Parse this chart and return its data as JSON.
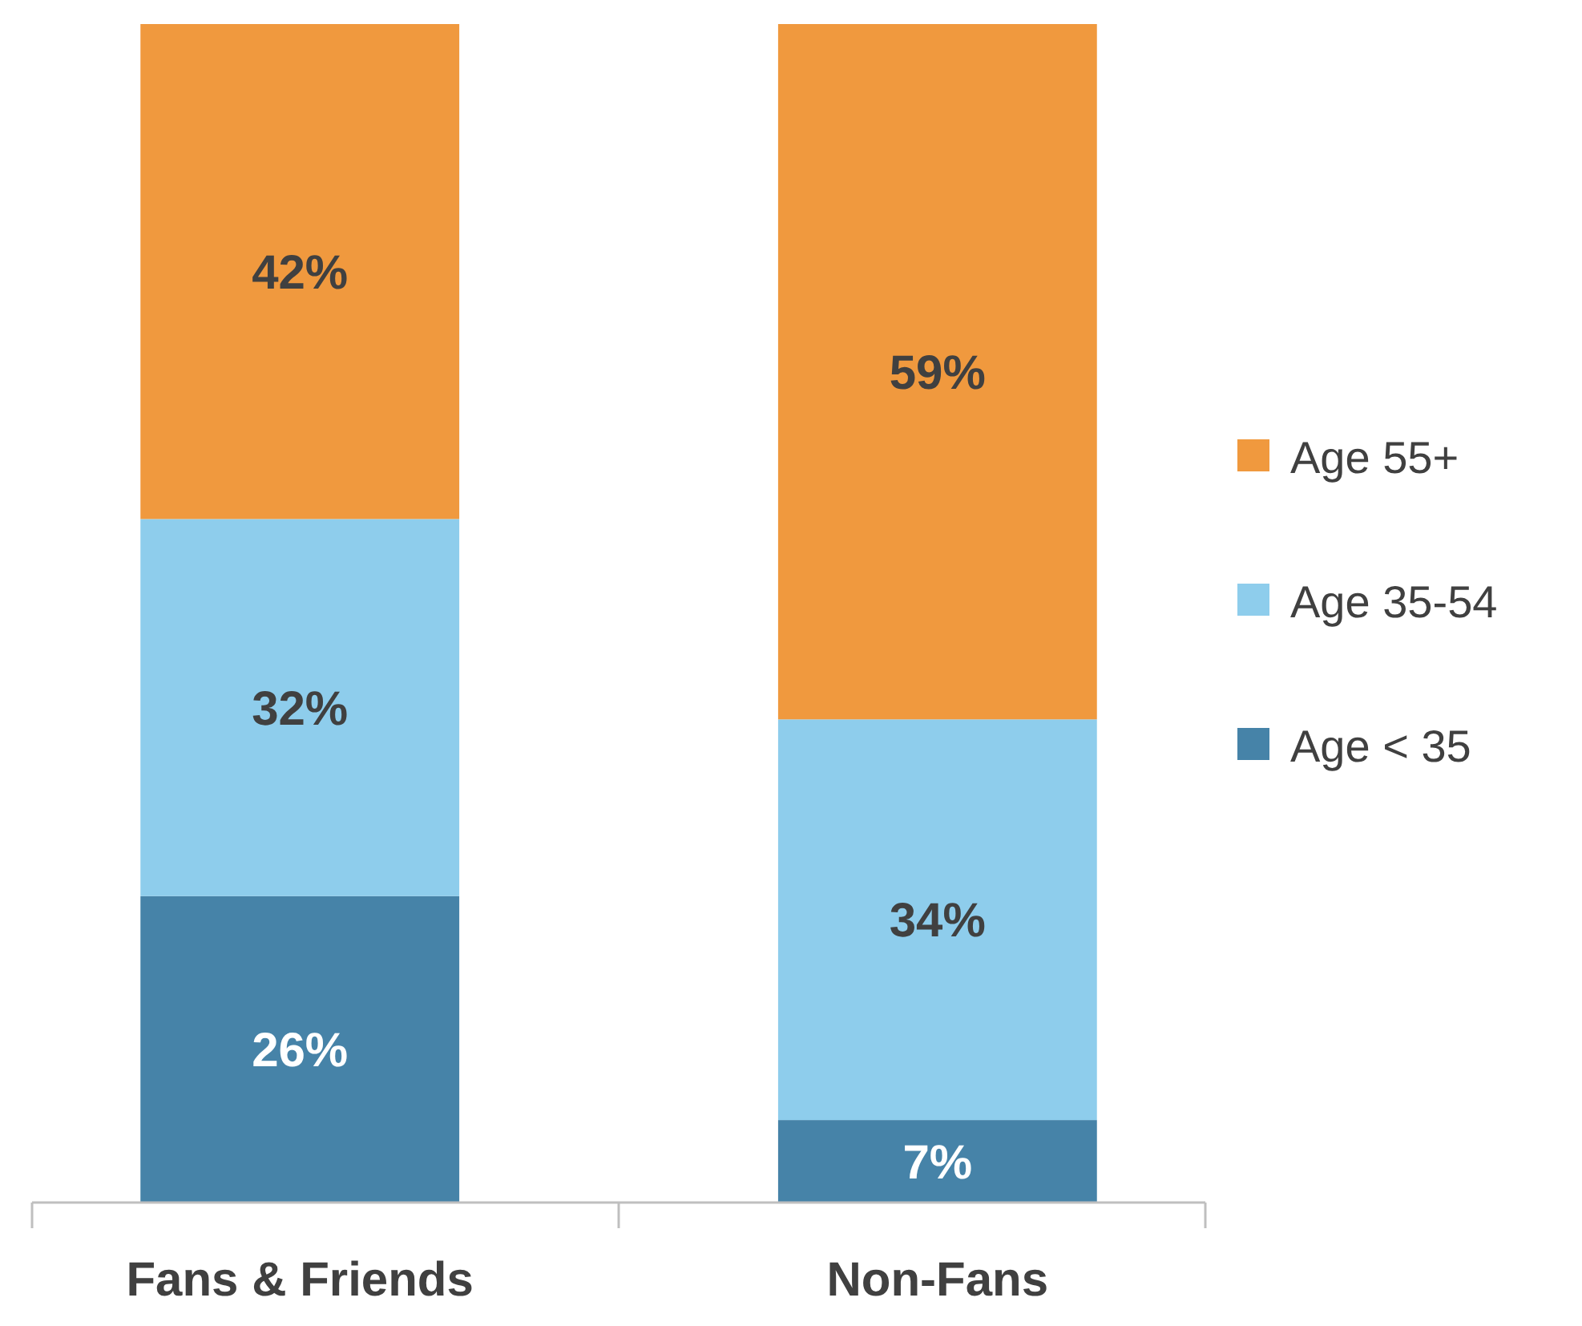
{
  "chart_data": {
    "type": "bar",
    "stacked": true,
    "categories": [
      "Fans & Friends",
      "Non-Fans"
    ],
    "legend": "right",
    "series": [
      {
        "name": "Age < 35",
        "color": "#4683a8",
        "values": [
          26,
          7
        ],
        "value_labels": [
          "26%",
          "7%"
        ]
      },
      {
        "name": "Age 35-54",
        "color": "#8ecdec",
        "values": [
          32,
          34
        ],
        "value_labels": [
          "32%",
          "34%"
        ]
      },
      {
        "name": "Age 55+",
        "color": "#f0993e",
        "values": [
          42,
          59
        ],
        "value_labels": [
          "42%",
          "59%"
        ]
      }
    ]
  }
}
